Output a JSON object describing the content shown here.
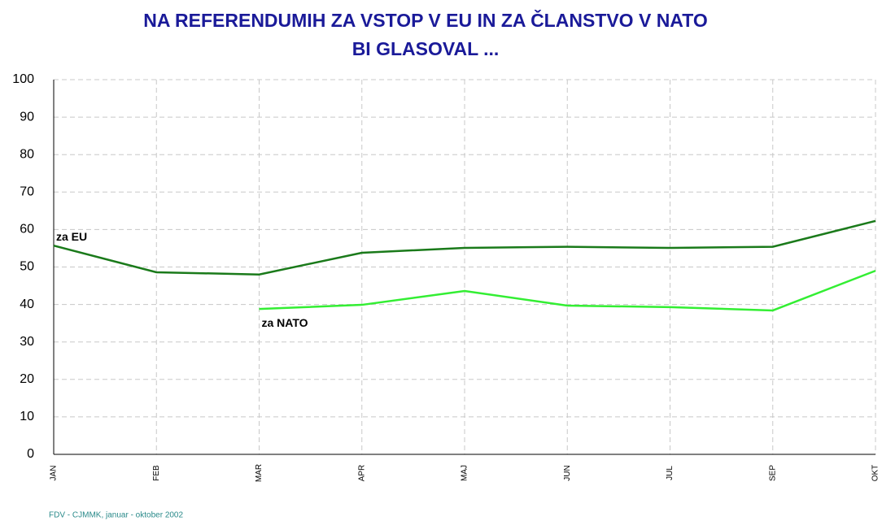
{
  "chart_data": {
    "type": "line",
    "title": [
      "NA REFERENDUMIH ZA VSTOP V EU IN ZA ČLANSTVO V NATO",
      "BI GLASOVAL ..."
    ],
    "categories": [
      "JAN",
      "FEB",
      "MAR",
      "APR",
      "MAJ",
      "JUN",
      "JUL",
      "SEP",
      "OKT"
    ],
    "series": [
      {
        "name": "za EU",
        "color": "#1a7a1a",
        "values": [
          55.7,
          48.6,
          48,
          53.8,
          55.1,
          55.4,
          55.1,
          55.4,
          62.3
        ]
      },
      {
        "name": "za NATO",
        "color": "#33ee33",
        "values": [
          null,
          null,
          38.8,
          39.9,
          43.6,
          39.7,
          39.3,
          38.4,
          49
        ]
      }
    ],
    "ylim": [
      0,
      100
    ],
    "yticks": [
      0,
      10,
      20,
      30,
      40,
      50,
      60,
      70,
      80,
      90,
      100
    ],
    "grid": true,
    "source": "FDV - CJMMK, januar - oktober 2002"
  }
}
